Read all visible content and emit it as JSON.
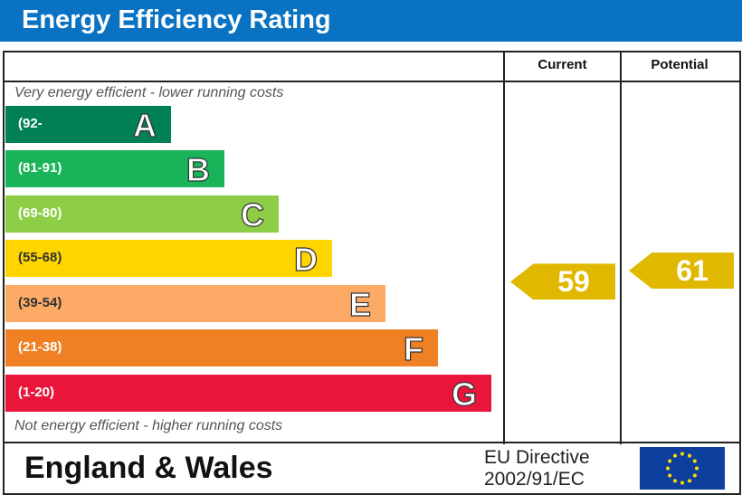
{
  "header": {
    "title": "Energy Efficiency Rating"
  },
  "columns": {
    "current": "Current",
    "potential": "Potential"
  },
  "notes": {
    "top": "Very energy efficient - lower running costs",
    "bottom": "Not energy efficient - higher running costs"
  },
  "footer": {
    "region": "England & Wales",
    "directive_line1": "EU Directive",
    "directive_line2": "2002/91/EC"
  },
  "chart_data": {
    "type": "bar",
    "title": "Energy Efficiency Rating",
    "categories": [
      "A",
      "B",
      "C",
      "D",
      "E",
      "F",
      "G"
    ],
    "ranges": [
      "(92-",
      "(81-91)",
      "(69-80)",
      "(55-68)",
      "(39-54)",
      "(21-38)",
      "(1-20)"
    ],
    "colors": [
      "#008054",
      "#19b459",
      "#8dce46",
      "#ffd500",
      "#fcaa65",
      "#ef8023",
      "#e9153b"
    ],
    "current": {
      "value": 59,
      "band": "D",
      "label": "59"
    },
    "potential": {
      "value": 61,
      "band": "D",
      "label": "61"
    },
    "arrow_color": "#e0b800"
  }
}
